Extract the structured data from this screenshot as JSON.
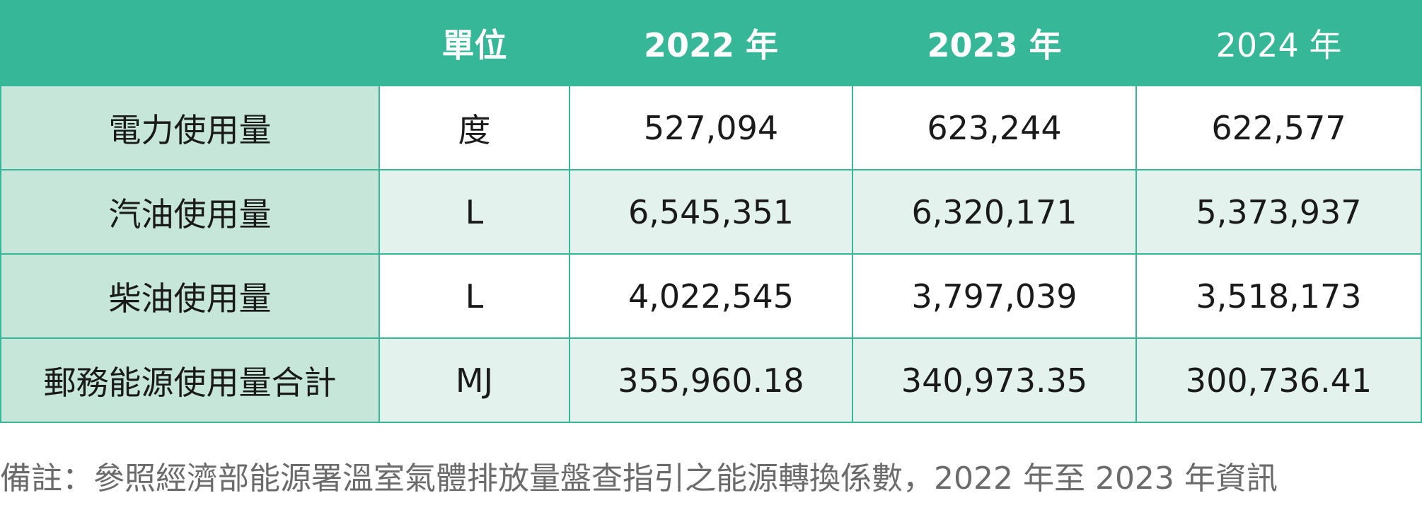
{
  "table": {
    "header": [
      "單位",
      "2022 年",
      "2023 年",
      "2024 年"
    ],
    "rows": [
      [
        "電力使用量",
        "度",
        "527,094",
        "623,244",
        "622,577"
      ],
      [
        "汽油使用量",
        "L",
        "6,545,351",
        "6,320,171",
        "5,373,937"
      ],
      [
        "柴油使用量",
        "L",
        "4,022,545",
        "3,797,039",
        "3,518,173"
      ],
      [
        "郵務能源使用量合計",
        "MJ",
        "355,960.18",
        "340,973.35",
        "300,736.41"
      ]
    ]
  },
  "note": "備註：參照經濟部能源署溫室氣體排放量盤查指引之能源轉換係數，2022 年至 2023 年資訊"
}
